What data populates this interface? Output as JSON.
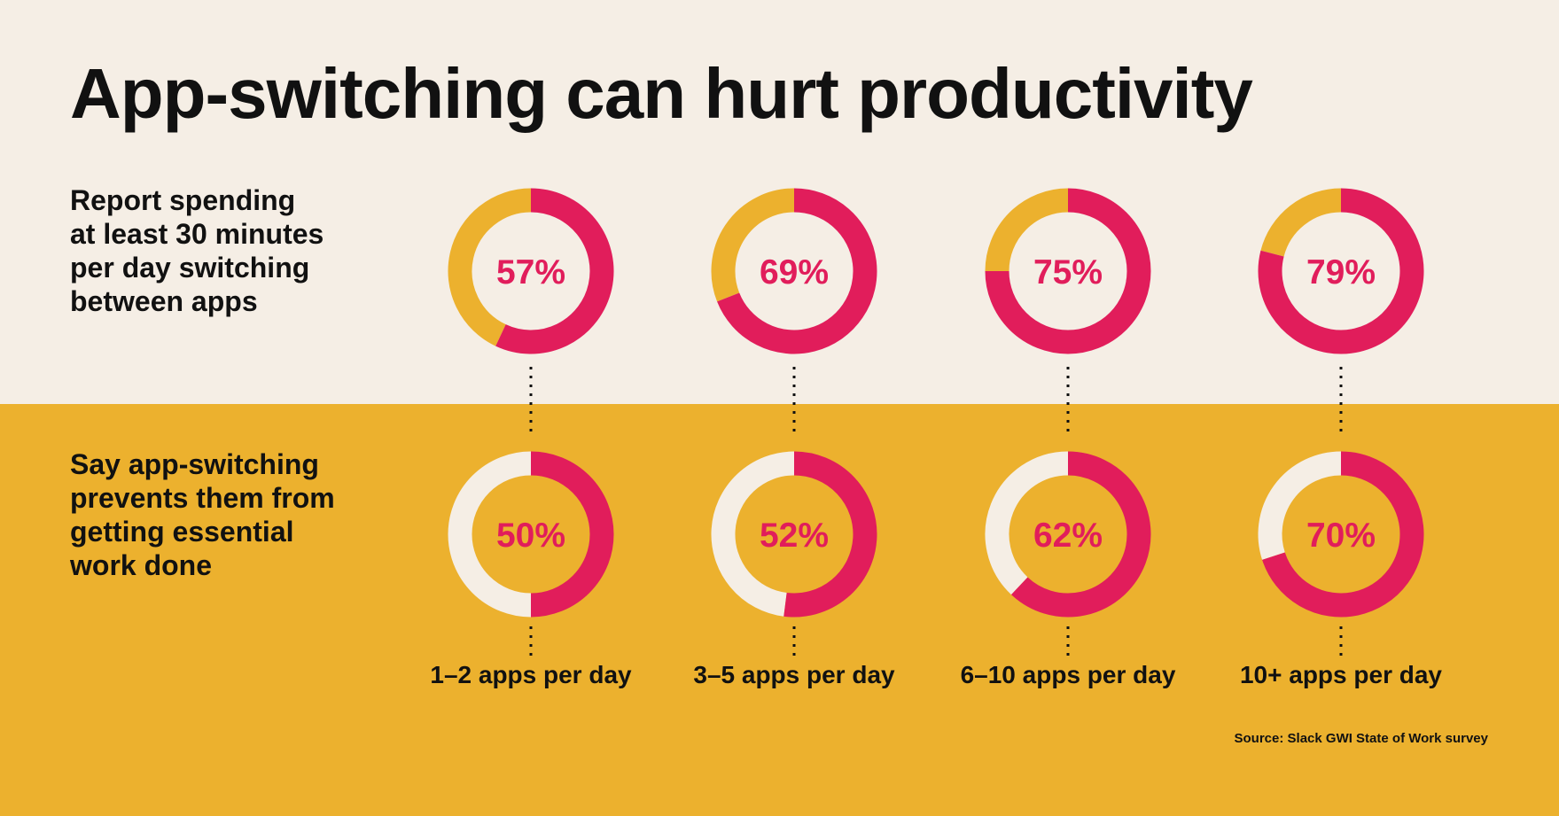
{
  "title": "App-switching can hurt productivity",
  "source": "Source: Slack GWI State of Work survey",
  "colors": {
    "background_top": "#f5eee5",
    "background_bottom": "#ecb12e",
    "highlight": "#e11d5b",
    "text": "#111111"
  },
  "chart_data": {
    "type": "pie",
    "categories": [
      "1–2 apps per day",
      "3–5 apps per day",
      "6–10 apps per day",
      "10+ apps per day"
    ],
    "series": [
      {
        "label_lines": [
          "Report spending",
          "at least 30 minutes",
          "per day switching",
          "between apps"
        ],
        "values": [
          57,
          69,
          75,
          79
        ],
        "value_labels": [
          "57%",
          "69%",
          "75%",
          "79%"
        ]
      },
      {
        "label_lines": [
          "Say app-switching",
          "prevents them from",
          "getting essential",
          "work done"
        ],
        "values": [
          50,
          52,
          62,
          70
        ],
        "value_labels": [
          "50%",
          "52%",
          "62%",
          "70%"
        ]
      }
    ]
  }
}
